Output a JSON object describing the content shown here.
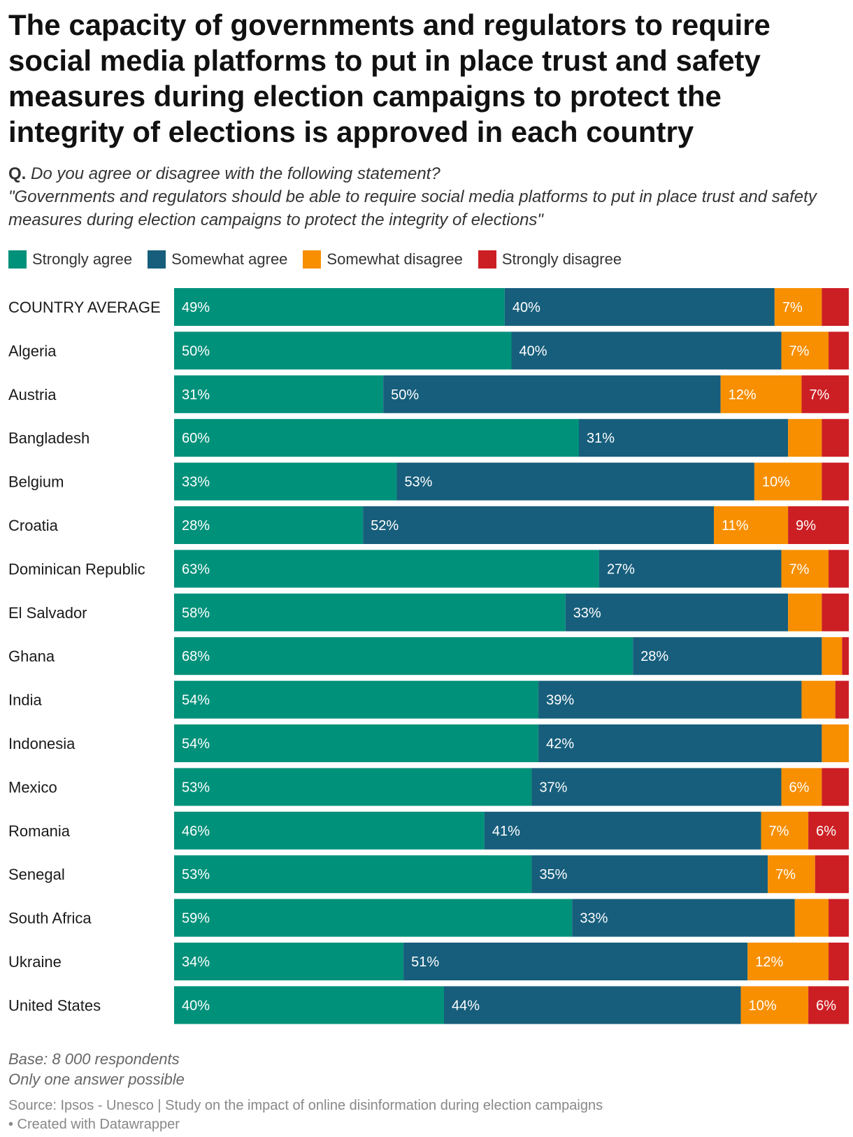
{
  "title": "The capacity of governments and regulators to require social media platforms to put in place trust and safety measures during election campaigns to protect the integrity of elections is approved in each country",
  "question": {
    "label": "Q.",
    "text": "Do you agree or disagree with the following statement?",
    "statement": "\"Governments and regulators should be able to require social media platforms to put in place trust and safety measures during election campaigns to protect the integrity of elections\""
  },
  "legend": [
    {
      "label": "Strongly agree",
      "color": "#00917a"
    },
    {
      "label": "Somewhat agree",
      "color": "#175e7c"
    },
    {
      "label": "Somewhat disagree",
      "color": "#f78f00"
    },
    {
      "label": "Strongly disagree",
      "color": "#cc1f24"
    }
  ],
  "chart_data": {
    "type": "bar",
    "orientation": "horizontal",
    "stacked": true,
    "unit": "%",
    "categories": [
      "COUNTRY AVERAGE",
      "Algeria",
      "Austria",
      "Bangladesh",
      "Belgium",
      "Croatia",
      "Dominican Republic",
      "El Salvador",
      "Ghana",
      "India",
      "Indonesia",
      "Mexico",
      "Romania",
      "Senegal",
      "South Africa",
      "Ukraine",
      "United States"
    ],
    "series": [
      {
        "name": "Strongly agree",
        "color": "#00917a",
        "values": [
          49,
          50,
          31,
          60,
          33,
          28,
          63,
          58,
          68,
          54,
          54,
          53,
          46,
          53,
          59,
          34,
          40
        ],
        "labels": [
          "49%",
          "50%",
          "31%",
          "60%",
          "33%",
          "28%",
          "63%",
          "58%",
          "68%",
          "54%",
          "54%",
          "53%",
          "46%",
          "53%",
          "59%",
          "34%",
          "40%"
        ]
      },
      {
        "name": "Somewhat agree",
        "color": "#175e7c",
        "values": [
          40,
          40,
          50,
          31,
          53,
          52,
          27,
          33,
          28,
          39,
          42,
          37,
          41,
          35,
          33,
          51,
          44
        ],
        "labels": [
          "40%",
          "40%",
          "50%",
          "31%",
          "53%",
          "52%",
          "27%",
          "33%",
          "28%",
          "39%",
          "42%",
          "37%",
          "41%",
          "35%",
          "33%",
          "51%",
          "44%"
        ]
      },
      {
        "name": "Somewhat disagree",
        "color": "#f78f00",
        "values": [
          7,
          7,
          12,
          5,
          10,
          11,
          7,
          5,
          3,
          5,
          4,
          6,
          7,
          7,
          5,
          12,
          10
        ],
        "labels": [
          "7%",
          "7%",
          "12%",
          "",
          "10%",
          "11%",
          "7%",
          "",
          "",
          "",
          "",
          "6%",
          "7%",
          "7%",
          "",
          "12%",
          "10%"
        ]
      },
      {
        "name": "Strongly disagree",
        "color": "#cc1f24",
        "values": [
          4,
          3,
          7,
          4,
          4,
          9,
          3,
          4,
          1,
          2,
          0,
          4,
          6,
          5,
          3,
          3,
          6
        ],
        "labels": [
          "",
          "",
          "7%",
          "",
          "",
          "9%",
          "",
          "",
          "",
          "",
          "",
          "",
          "6%",
          "",
          "",
          "",
          "6%"
        ]
      }
    ],
    "xlim": [
      0,
      100
    ]
  },
  "notes": {
    "base": "Base: 8 000 respondents",
    "answer": "Only one answer possible"
  },
  "footer": {
    "source": "Source: Ipsos - Unesco | Study on the impact of online disinformation during election campaigns",
    "credit": "• Created with Datawrapper"
  }
}
